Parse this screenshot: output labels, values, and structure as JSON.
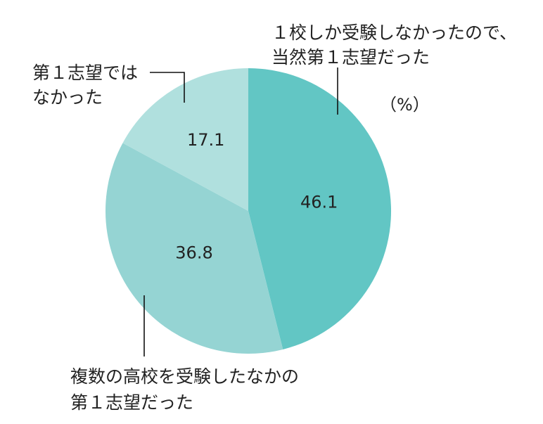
{
  "chart_data": {
    "type": "pie",
    "unit_label": "（%）",
    "slices": [
      {
        "label_lines": [
          "１校しか受験しなかったので、",
          "当然第１志望だった"
        ],
        "value": 46.1,
        "value_label": "46.1",
        "color": "#62c6c4"
      },
      {
        "label_lines": [
          "複数の高校を受験したなかの",
          "第１志望だった"
        ],
        "value": 36.8,
        "value_label": "36.8",
        "color": "#95d4d3"
      },
      {
        "label_lines": [
          "第１志望では",
          "なかった"
        ],
        "value": 17.1,
        "value_label": "17.1",
        "color": "#b0e0de"
      }
    ]
  }
}
